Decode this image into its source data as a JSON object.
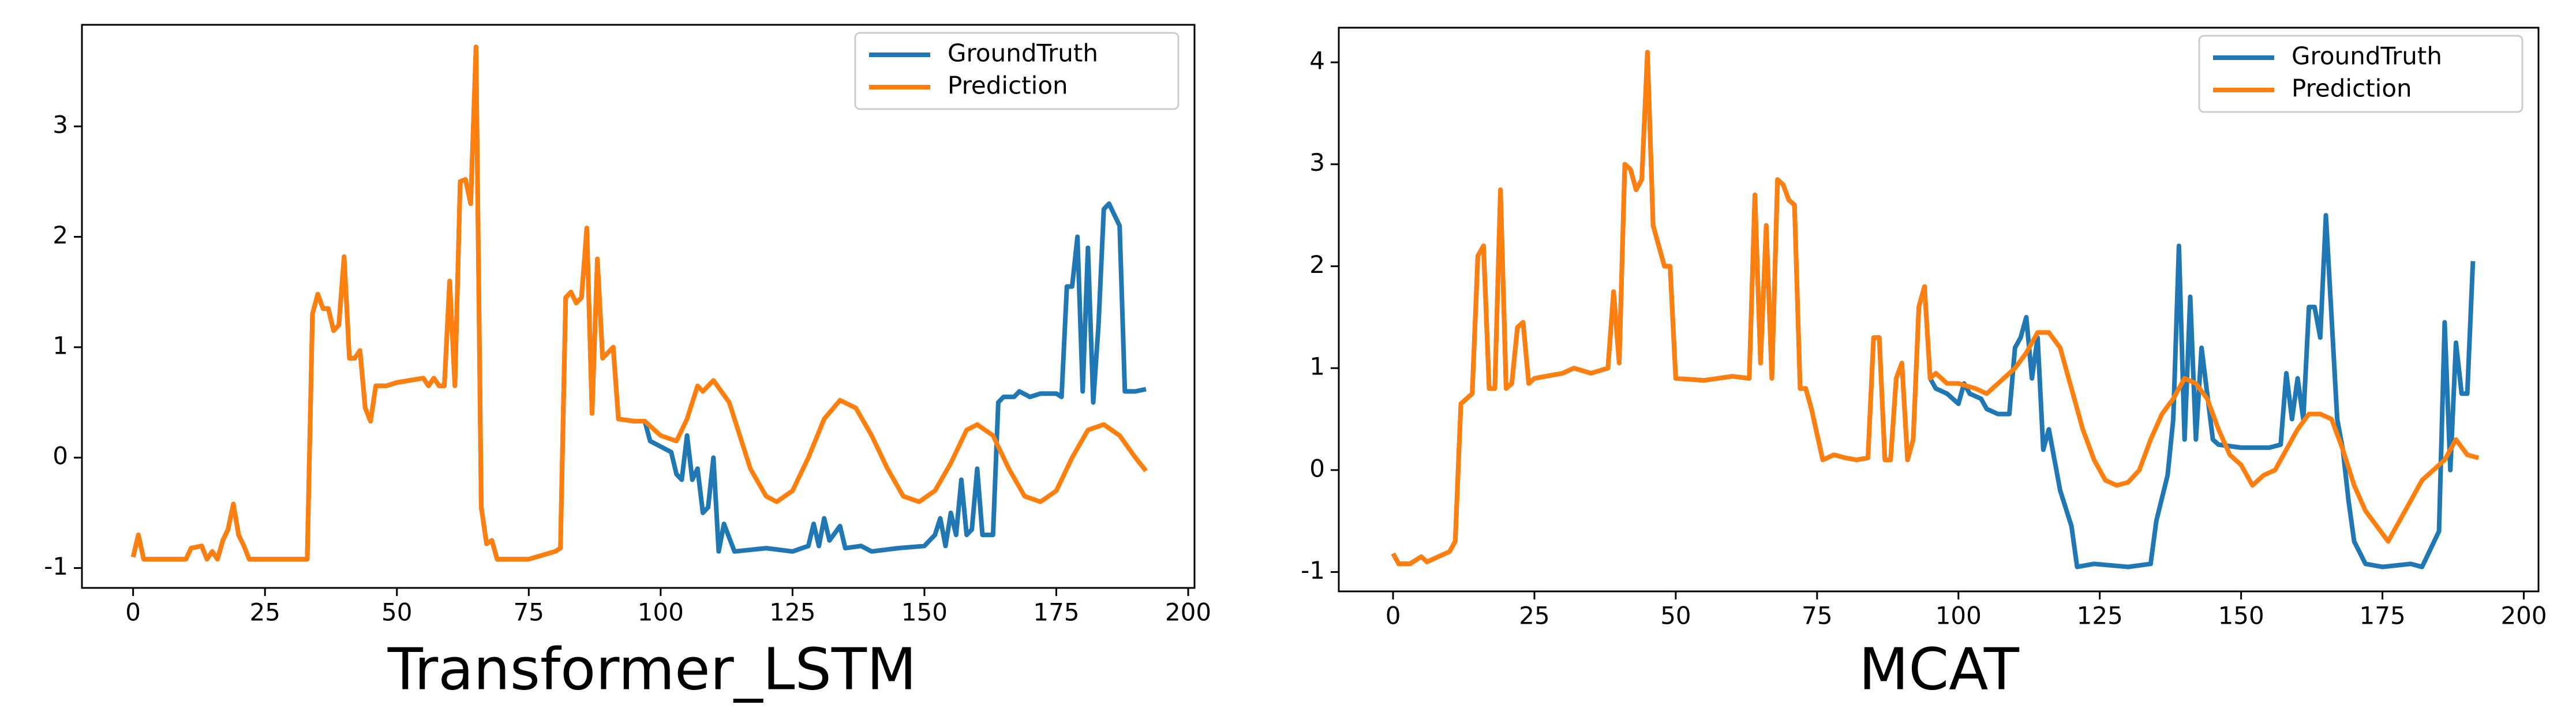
{
  "chart_data": [
    {
      "type": "line",
      "title": "Transformer_LSTM",
      "xlim": [
        -9.7,
        201.2
      ],
      "ylim": [
        -1.18,
        3.92
      ],
      "xticks": [
        0,
        25,
        50,
        75,
        100,
        125,
        150,
        175,
        200
      ],
      "yticks": [
        -1,
        0,
        1,
        2,
        3
      ],
      "legend": "upper right",
      "series": [
        {
          "name": "GroundTruth",
          "color": "#1f77b4",
          "x": [
            0,
            1,
            2,
            5,
            10,
            11,
            13,
            14,
            15,
            16,
            17,
            18,
            19,
            20,
            21,
            22,
            25,
            30,
            33,
            34,
            35,
            36,
            37,
            38,
            39,
            40,
            41,
            42,
            43,
            44,
            45,
            46,
            48,
            50,
            55,
            56,
            57,
            58,
            59,
            60,
            61,
            62,
            63,
            64,
            65,
            66,
            67,
            68,
            69,
            75,
            80,
            81,
            82,
            83,
            84,
            85,
            86,
            87,
            88,
            89,
            90,
            91,
            92,
            95,
            97,
            98,
            100,
            102,
            103,
            104,
            105,
            106,
            107,
            108,
            109,
            110,
            111,
            112,
            114,
            120,
            125,
            128,
            129,
            130,
            131,
            132,
            134,
            135,
            138,
            140,
            145,
            150,
            152,
            153,
            154,
            155,
            156,
            157,
            158,
            159,
            160,
            161,
            163,
            164,
            165,
            167,
            168,
            170,
            172,
            175,
            176,
            177,
            178,
            179,
            180,
            181,
            182,
            183,
            184,
            185,
            186,
            187,
            188,
            190,
            192
          ],
          "values": [
            -0.9,
            -0.7,
            -0.92,
            -0.92,
            -0.92,
            -0.82,
            -0.8,
            -0.92,
            -0.85,
            -0.92,
            -0.75,
            -0.65,
            -0.42,
            -0.7,
            -0.8,
            -0.92,
            -0.92,
            -0.92,
            -0.92,
            1.3,
            1.48,
            1.35,
            1.35,
            1.15,
            1.2,
            1.82,
            0.9,
            0.9,
            0.97,
            0.45,
            0.33,
            0.65,
            0.65,
            0.68,
            0.72,
            0.65,
            0.72,
            0.65,
            0.65,
            1.6,
            0.65,
            2.5,
            2.52,
            2.3,
            3.72,
            -0.45,
            -0.78,
            -0.75,
            -0.92,
            -0.92,
            -0.85,
            -0.82,
            1.45,
            1.5,
            1.4,
            1.45,
            2.08,
            0.4,
            1.8,
            0.9,
            0.95,
            1.0,
            0.35,
            0.33,
            0.33,
            0.15,
            0.1,
            0.05,
            -0.15,
            -0.2,
            0.2,
            -0.2,
            -0.1,
            -0.5,
            -0.45,
            0.0,
            -0.85,
            -0.6,
            -0.85,
            -0.82,
            -0.85,
            -0.8,
            -0.6,
            -0.8,
            -0.55,
            -0.75,
            -0.62,
            -0.82,
            -0.8,
            -0.85,
            -0.82,
            -0.8,
            -0.7,
            -0.55,
            -0.8,
            -0.5,
            -0.7,
            -0.2,
            -0.7,
            -0.65,
            -0.1,
            -0.7,
            -0.7,
            0.5,
            0.55,
            0.55,
            0.6,
            0.55,
            0.58,
            0.58,
            0.55,
            1.55,
            1.55,
            2.0,
            0.6,
            1.9,
            0.5,
            1.2,
            2.25,
            2.3,
            2.2,
            2.1,
            0.6,
            0.6,
            0.62
          ]
        },
        {
          "name": "Prediction",
          "color": "#ff7f0e",
          "x": [
            0,
            1,
            2,
            5,
            10,
            11,
            13,
            14,
            15,
            16,
            17,
            18,
            19,
            20,
            21,
            22,
            25,
            30,
            33,
            34,
            35,
            36,
            37,
            38,
            39,
            40,
            41,
            42,
            43,
            44,
            45,
            46,
            48,
            50,
            55,
            56,
            57,
            58,
            59,
            60,
            61,
            62,
            63,
            64,
            65,
            66,
            67,
            68,
            69,
            75,
            80,
            81,
            82,
            83,
            84,
            85,
            86,
            87,
            88,
            89,
            90,
            91,
            92,
            95,
            97,
            100,
            103,
            105,
            107,
            108,
            110,
            113,
            115,
            117,
            120,
            122,
            125,
            128,
            131,
            134,
            137,
            140,
            143,
            146,
            149,
            152,
            155,
            158,
            160,
            163,
            166,
            169,
            172,
            175,
            178,
            181,
            184,
            187,
            190,
            192
          ],
          "values": [
            -0.9,
            -0.7,
            -0.92,
            -0.92,
            -0.92,
            -0.82,
            -0.8,
            -0.92,
            -0.85,
            -0.92,
            -0.75,
            -0.65,
            -0.42,
            -0.7,
            -0.8,
            -0.92,
            -0.92,
            -0.92,
            -0.92,
            1.3,
            1.48,
            1.35,
            1.35,
            1.15,
            1.2,
            1.82,
            0.9,
            0.9,
            0.97,
            0.45,
            0.33,
            0.65,
            0.65,
            0.68,
            0.72,
            0.65,
            0.72,
            0.65,
            0.65,
            1.6,
            0.65,
            2.5,
            2.52,
            2.3,
            3.72,
            -0.45,
            -0.78,
            -0.75,
            -0.92,
            -0.92,
            -0.85,
            -0.82,
            1.45,
            1.5,
            1.4,
            1.45,
            2.08,
            0.4,
            1.8,
            0.9,
            0.95,
            1.0,
            0.35,
            0.33,
            0.33,
            0.2,
            0.15,
            0.35,
            0.65,
            0.6,
            0.7,
            0.5,
            0.2,
            -0.1,
            -0.35,
            -0.4,
            -0.3,
            0.0,
            0.35,
            0.52,
            0.45,
            0.2,
            -0.1,
            -0.35,
            -0.4,
            -0.3,
            -0.05,
            0.25,
            0.3,
            0.2,
            -0.1,
            -0.35,
            -0.4,
            -0.3,
            0.0,
            0.25,
            0.3,
            0.2,
            0.0,
            -0.12
          ]
        }
      ]
    },
    {
      "type": "line",
      "title": "MCAT",
      "xlim": [
        -9.6,
        202.6
      ],
      "ylim": [
        -1.19,
        4.34
      ],
      "xticks": [
        0,
        25,
        50,
        75,
        100,
        125,
        150,
        175,
        200
      ],
      "yticks": [
        -1,
        0,
        1,
        2,
        3,
        4
      ],
      "legend": "upper right",
      "series": [
        {
          "name": "GroundTruth",
          "color": "#1f77b4",
          "x": [
            0,
            1,
            3,
            5,
            6,
            8,
            10,
            11,
            12,
            13,
            14,
            15,
            16,
            17,
            18,
            19,
            20,
            21,
            22,
            23,
            24,
            25,
            30,
            32,
            35,
            38,
            39,
            40,
            41,
            42,
            43,
            44,
            45,
            46,
            47,
            48,
            49,
            50,
            55,
            60,
            63,
            64,
            65,
            66,
            67,
            68,
            69,
            70,
            71,
            72,
            73,
            74,
            75,
            76,
            78,
            80,
            82,
            84,
            85,
            86,
            87,
            88,
            89,
            90,
            91,
            92,
            93,
            94,
            95,
            96,
            98,
            100,
            101,
            102,
            104,
            105,
            107,
            109,
            110,
            111,
            112,
            113,
            114,
            115,
            116,
            117,
            118,
            120,
            121,
            124,
            130,
            134,
            135,
            137,
            138,
            139,
            140,
            141,
            142,
            143,
            145,
            146,
            150,
            155,
            157,
            158,
            159,
            160,
            161,
            162,
            163,
            164,
            165,
            166,
            167,
            168,
            169,
            170,
            172,
            175,
            180,
            182,
            185,
            186,
            187,
            188,
            189,
            190,
            191
          ],
          "values": [
            -0.82,
            -0.92,
            -0.92,
            -0.85,
            -0.9,
            -0.85,
            -0.8,
            -0.7,
            0.65,
            0.7,
            0.75,
            2.1,
            2.2,
            0.8,
            0.8,
            2.75,
            0.8,
            0.85,
            1.4,
            1.45,
            0.85,
            0.9,
            0.95,
            1.0,
            0.95,
            1.0,
            1.75,
            1.05,
            3.0,
            2.95,
            2.75,
            2.85,
            4.1,
            2.4,
            2.2,
            2.0,
            2.0,
            0.9,
            0.88,
            0.92,
            0.9,
            2.7,
            1.05,
            2.4,
            0.9,
            2.85,
            2.8,
            2.65,
            2.6,
            0.8,
            0.8,
            0.6,
            0.35,
            0.1,
            0.15,
            0.12,
            0.1,
            0.12,
            1.3,
            1.3,
            0.1,
            0.1,
            0.9,
            1.05,
            0.1,
            0.3,
            1.6,
            1.8,
            0.9,
            0.8,
            0.75,
            0.65,
            0.85,
            0.75,
            0.7,
            0.6,
            0.55,
            0.55,
            1.2,
            1.3,
            1.5,
            0.9,
            1.3,
            0.2,
            0.4,
            0.1,
            -0.2,
            -0.55,
            -0.95,
            -0.92,
            -0.95,
            -0.92,
            -0.5,
            -0.05,
            0.5,
            2.2,
            0.3,
            1.7,
            0.3,
            1.2,
            0.3,
            0.25,
            0.22,
            0.22,
            0.25,
            0.95,
            0.5,
            0.9,
            0.5,
            1.6,
            1.6,
            1.3,
            2.5,
            1.5,
            0.5,
            0.2,
            -0.3,
            -0.7,
            -0.92,
            -0.95,
            -0.92,
            -0.95,
            -0.6,
            1.45,
            0.0,
            1.25,
            0.75,
            0.75,
            2.05
          ]
        },
        {
          "name": "Prediction",
          "color": "#ff7f0e",
          "x": [
            0,
            1,
            3,
            5,
            6,
            8,
            10,
            11,
            12,
            13,
            14,
            15,
            16,
            17,
            18,
            19,
            20,
            21,
            22,
            23,
            24,
            25,
            30,
            32,
            35,
            38,
            39,
            40,
            41,
            42,
            43,
            44,
            45,
            46,
            47,
            48,
            49,
            50,
            55,
            60,
            63,
            64,
            65,
            66,
            67,
            68,
            69,
            70,
            71,
            72,
            73,
            74,
            75,
            76,
            78,
            80,
            82,
            84,
            85,
            86,
            87,
            88,
            89,
            90,
            91,
            92,
            93,
            94,
            95,
            96,
            98,
            100,
            103,
            105,
            108,
            110,
            112,
            114,
            116,
            118,
            120,
            122,
            124,
            126,
            128,
            130,
            132,
            134,
            136,
            138,
            140,
            142,
            144,
            146,
            148,
            150,
            152,
            154,
            156,
            158,
            160,
            162,
            164,
            166,
            168,
            170,
            172,
            174,
            176,
            178,
            180,
            182,
            184,
            186,
            188,
            190,
            192
          ],
          "values": [
            -0.82,
            -0.92,
            -0.92,
            -0.85,
            -0.9,
            -0.85,
            -0.8,
            -0.7,
            0.65,
            0.7,
            0.75,
            2.1,
            2.2,
            0.8,
            0.8,
            2.75,
            0.8,
            0.85,
            1.4,
            1.45,
            0.85,
            0.9,
            0.95,
            1.0,
            0.95,
            1.0,
            1.75,
            1.05,
            3.0,
            2.95,
            2.75,
            2.85,
            4.1,
            2.4,
            2.2,
            2.0,
            2.0,
            0.9,
            0.88,
            0.92,
            0.9,
            2.7,
            1.05,
            2.4,
            0.9,
            2.85,
            2.8,
            2.65,
            2.6,
            0.8,
            0.8,
            0.6,
            0.35,
            0.1,
            0.15,
            0.12,
            0.1,
            0.12,
            1.3,
            1.3,
            0.1,
            0.1,
            0.9,
            1.05,
            0.1,
            0.3,
            1.6,
            1.8,
            0.9,
            0.95,
            0.85,
            0.85,
            0.8,
            0.75,
            0.9,
            1.0,
            1.15,
            1.35,
            1.35,
            1.2,
            0.8,
            0.4,
            0.1,
            -0.1,
            -0.15,
            -0.12,
            0.0,
            0.3,
            0.55,
            0.7,
            0.9,
            0.85,
            0.7,
            0.4,
            0.15,
            0.05,
            -0.15,
            -0.05,
            0.0,
            0.2,
            0.4,
            0.55,
            0.55,
            0.5,
            0.2,
            -0.15,
            -0.4,
            -0.55,
            -0.7,
            -0.5,
            -0.3,
            -0.1,
            0.0,
            0.1,
            0.3,
            0.15,
            0.12
          ]
        }
      ]
    }
  ]
}
